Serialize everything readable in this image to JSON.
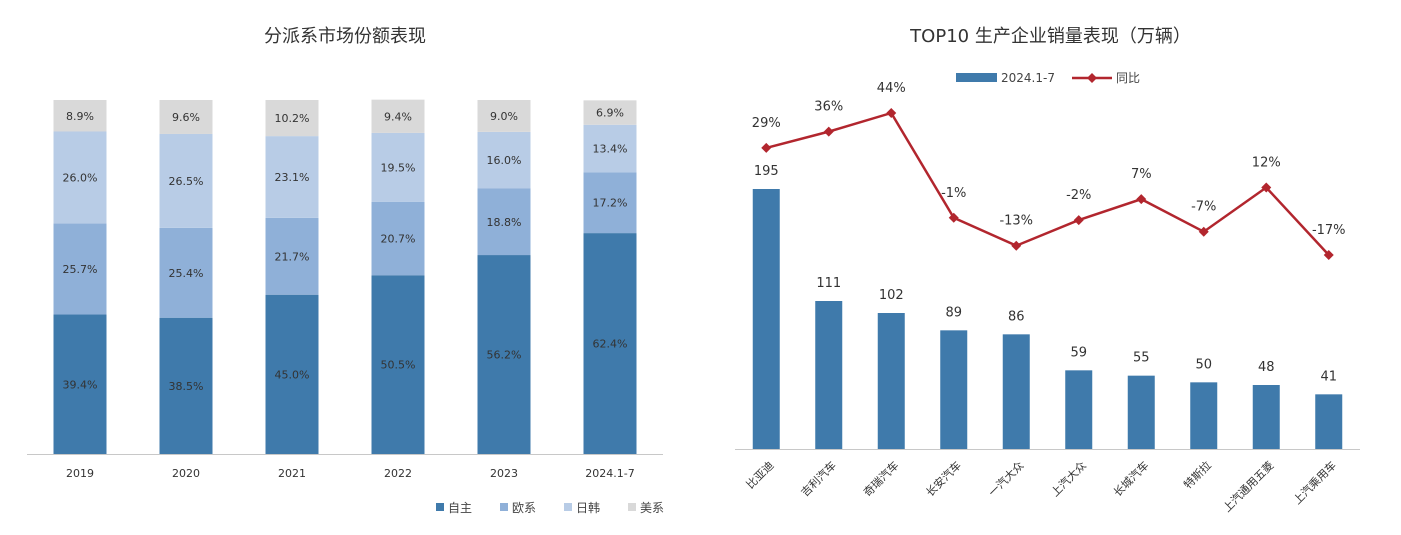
{
  "chart_data": [
    {
      "type": "bar",
      "stacked": true,
      "percent_stacked": true,
      "title": "分派系市场份额表现",
      "categories": [
        "2019",
        "2020",
        "2021",
        "2022",
        "2023",
        "2024.1-7"
      ],
      "series": [
        {
          "name": "自主",
          "values": [
            39.4,
            38.5,
            45.0,
            50.5,
            56.2,
            62.4
          ],
          "labels": [
            "39.4%",
            "38.5%",
            "45.0%",
            "50.5%",
            "56.2%",
            "62.4%"
          ],
          "color": "#3f7aab"
        },
        {
          "name": "欧系",
          "values": [
            25.7,
            25.4,
            21.7,
            20.7,
            18.8,
            17.2
          ],
          "labels": [
            "25.7%",
            "25.4%",
            "21.7%",
            "20.7%",
            "18.8%",
            "17.2%"
          ],
          "color": "#8fb0d8"
        },
        {
          "name": "日韩",
          "values": [
            26.0,
            26.5,
            23.1,
            19.5,
            16.0,
            13.4
          ],
          "labels": [
            "26.0%",
            "26.5%",
            "23.1%",
            "19.5%",
            "16.0%",
            "13.4%"
          ],
          "color": "#b8cce6"
        },
        {
          "name": "美系",
          "values": [
            8.9,
            9.6,
            10.2,
            9.4,
            9.0,
            6.9
          ],
          "labels": [
            "8.9%",
            "9.6%",
            "10.2%",
            "9.4%",
            "9.0%",
            "6.9%"
          ],
          "color": "#d9d9d9"
        }
      ],
      "legend_position": "bottom-right",
      "grid": false
    },
    {
      "type": "bar",
      "title": "TOP10 生产企业销量表现（万辆）",
      "categories": [
        "比亚迪",
        "吉利汽车",
        "奇瑞汽车",
        "长安汽车",
        "一汽大众",
        "上汽大众",
        "长城汽车",
        "特斯拉",
        "上汽通用五菱",
        "上汽乘用车"
      ],
      "series": [
        {
          "name": "2024.1-7",
          "type": "bar",
          "values": [
            195,
            111,
            102,
            89,
            86,
            59,
            55,
            50,
            48,
            41
          ],
          "color": "#3f7aab"
        },
        {
          "name": "同比",
          "type": "line",
          "values": [
            29,
            36,
            44,
            -1,
            -13,
            -2,
            7,
            -7,
            12,
            -17
          ],
          "labels": [
            "29%",
            "36%",
            "44%",
            "-1%",
            "-13%",
            "-2%",
            "7%",
            "-7%",
            "12%",
            "-17%"
          ],
          "color": "#b2262e"
        }
      ],
      "legend_position": "top",
      "grid": false
    }
  ]
}
